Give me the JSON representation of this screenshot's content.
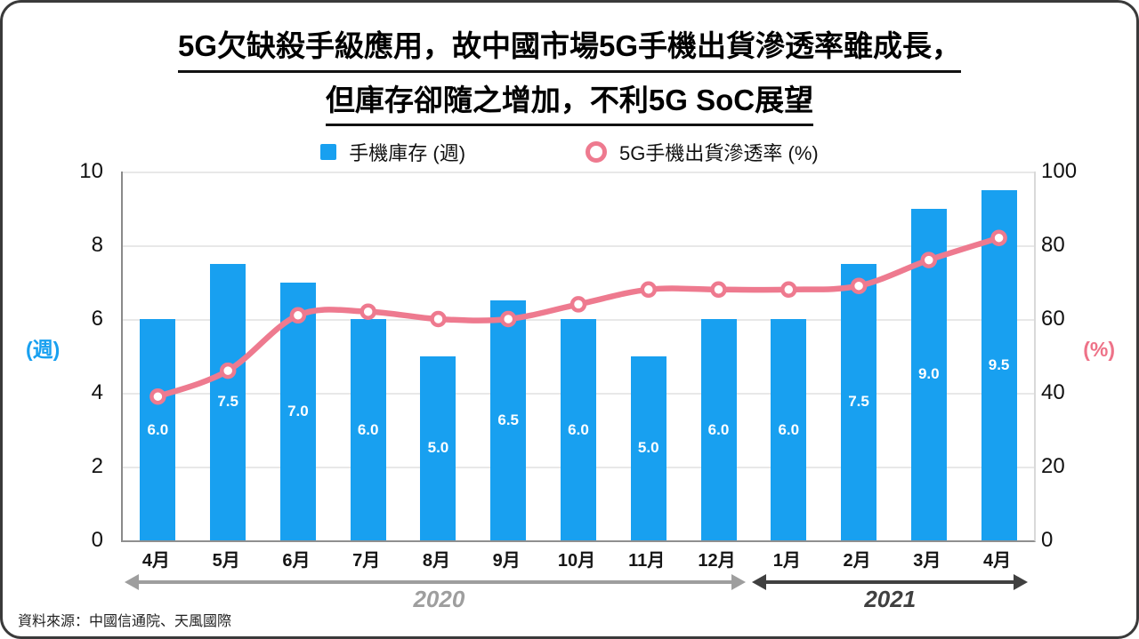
{
  "title": {
    "line1": "5G欠缺殺手級應用，故中國市場5G手機出貨滲透率雖成長，",
    "line2": "但庫存卻隨之增加，不利5G SoC展望"
  },
  "legend": {
    "bar_label": "手機庫存 (週)",
    "line_label": "5G手機出貨滲透率 (%)"
  },
  "chart_data": {
    "type": "bar",
    "subtype": "combo-bar-line",
    "categories": [
      "4月",
      "5月",
      "6月",
      "7月",
      "8月",
      "9月",
      "10月",
      "11月",
      "12月",
      "1月",
      "2月",
      "3月",
      "4月"
    ],
    "series": [
      {
        "name": "手機庫存 (週)",
        "type": "bar",
        "axis": "left",
        "values": [
          6.0,
          7.5,
          7.0,
          6.0,
          5.0,
          6.5,
          6.0,
          5.0,
          6.0,
          6.0,
          7.5,
          9.0,
          9.5
        ],
        "color": "#18A0F0"
      },
      {
        "name": "5G手機出貨滲透率 (%)",
        "type": "line",
        "axis": "right",
        "values": [
          39,
          46,
          61,
          62,
          60,
          60,
          64,
          68,
          68,
          68,
          69,
          76,
          82
        ],
        "color": "#EE7A8F",
        "marker_fill": "#FFFFFF"
      }
    ],
    "left_axis": {
      "label": "(週)",
      "range": [
        0,
        10
      ],
      "ticks": [
        0,
        2,
        4,
        6,
        8,
        10
      ],
      "color": "#18A0F0"
    },
    "right_axis": {
      "label": "(%)",
      "range": [
        0,
        100
      ],
      "ticks": [
        0,
        20,
        40,
        60,
        80,
        100
      ],
      "color": "#EE7288"
    },
    "grid": true,
    "legend_position": "top"
  },
  "timeline": {
    "groups": [
      {
        "label": "2020",
        "months": "4月–12月",
        "start_index": 0,
        "end_index": 8,
        "color": "#9E9E9E"
      },
      {
        "label": "2021",
        "months": "1月–4月",
        "start_index": 9,
        "end_index": 12,
        "color": "#404040"
      }
    ]
  },
  "source": "資料來源：中國信通院、天風國際"
}
